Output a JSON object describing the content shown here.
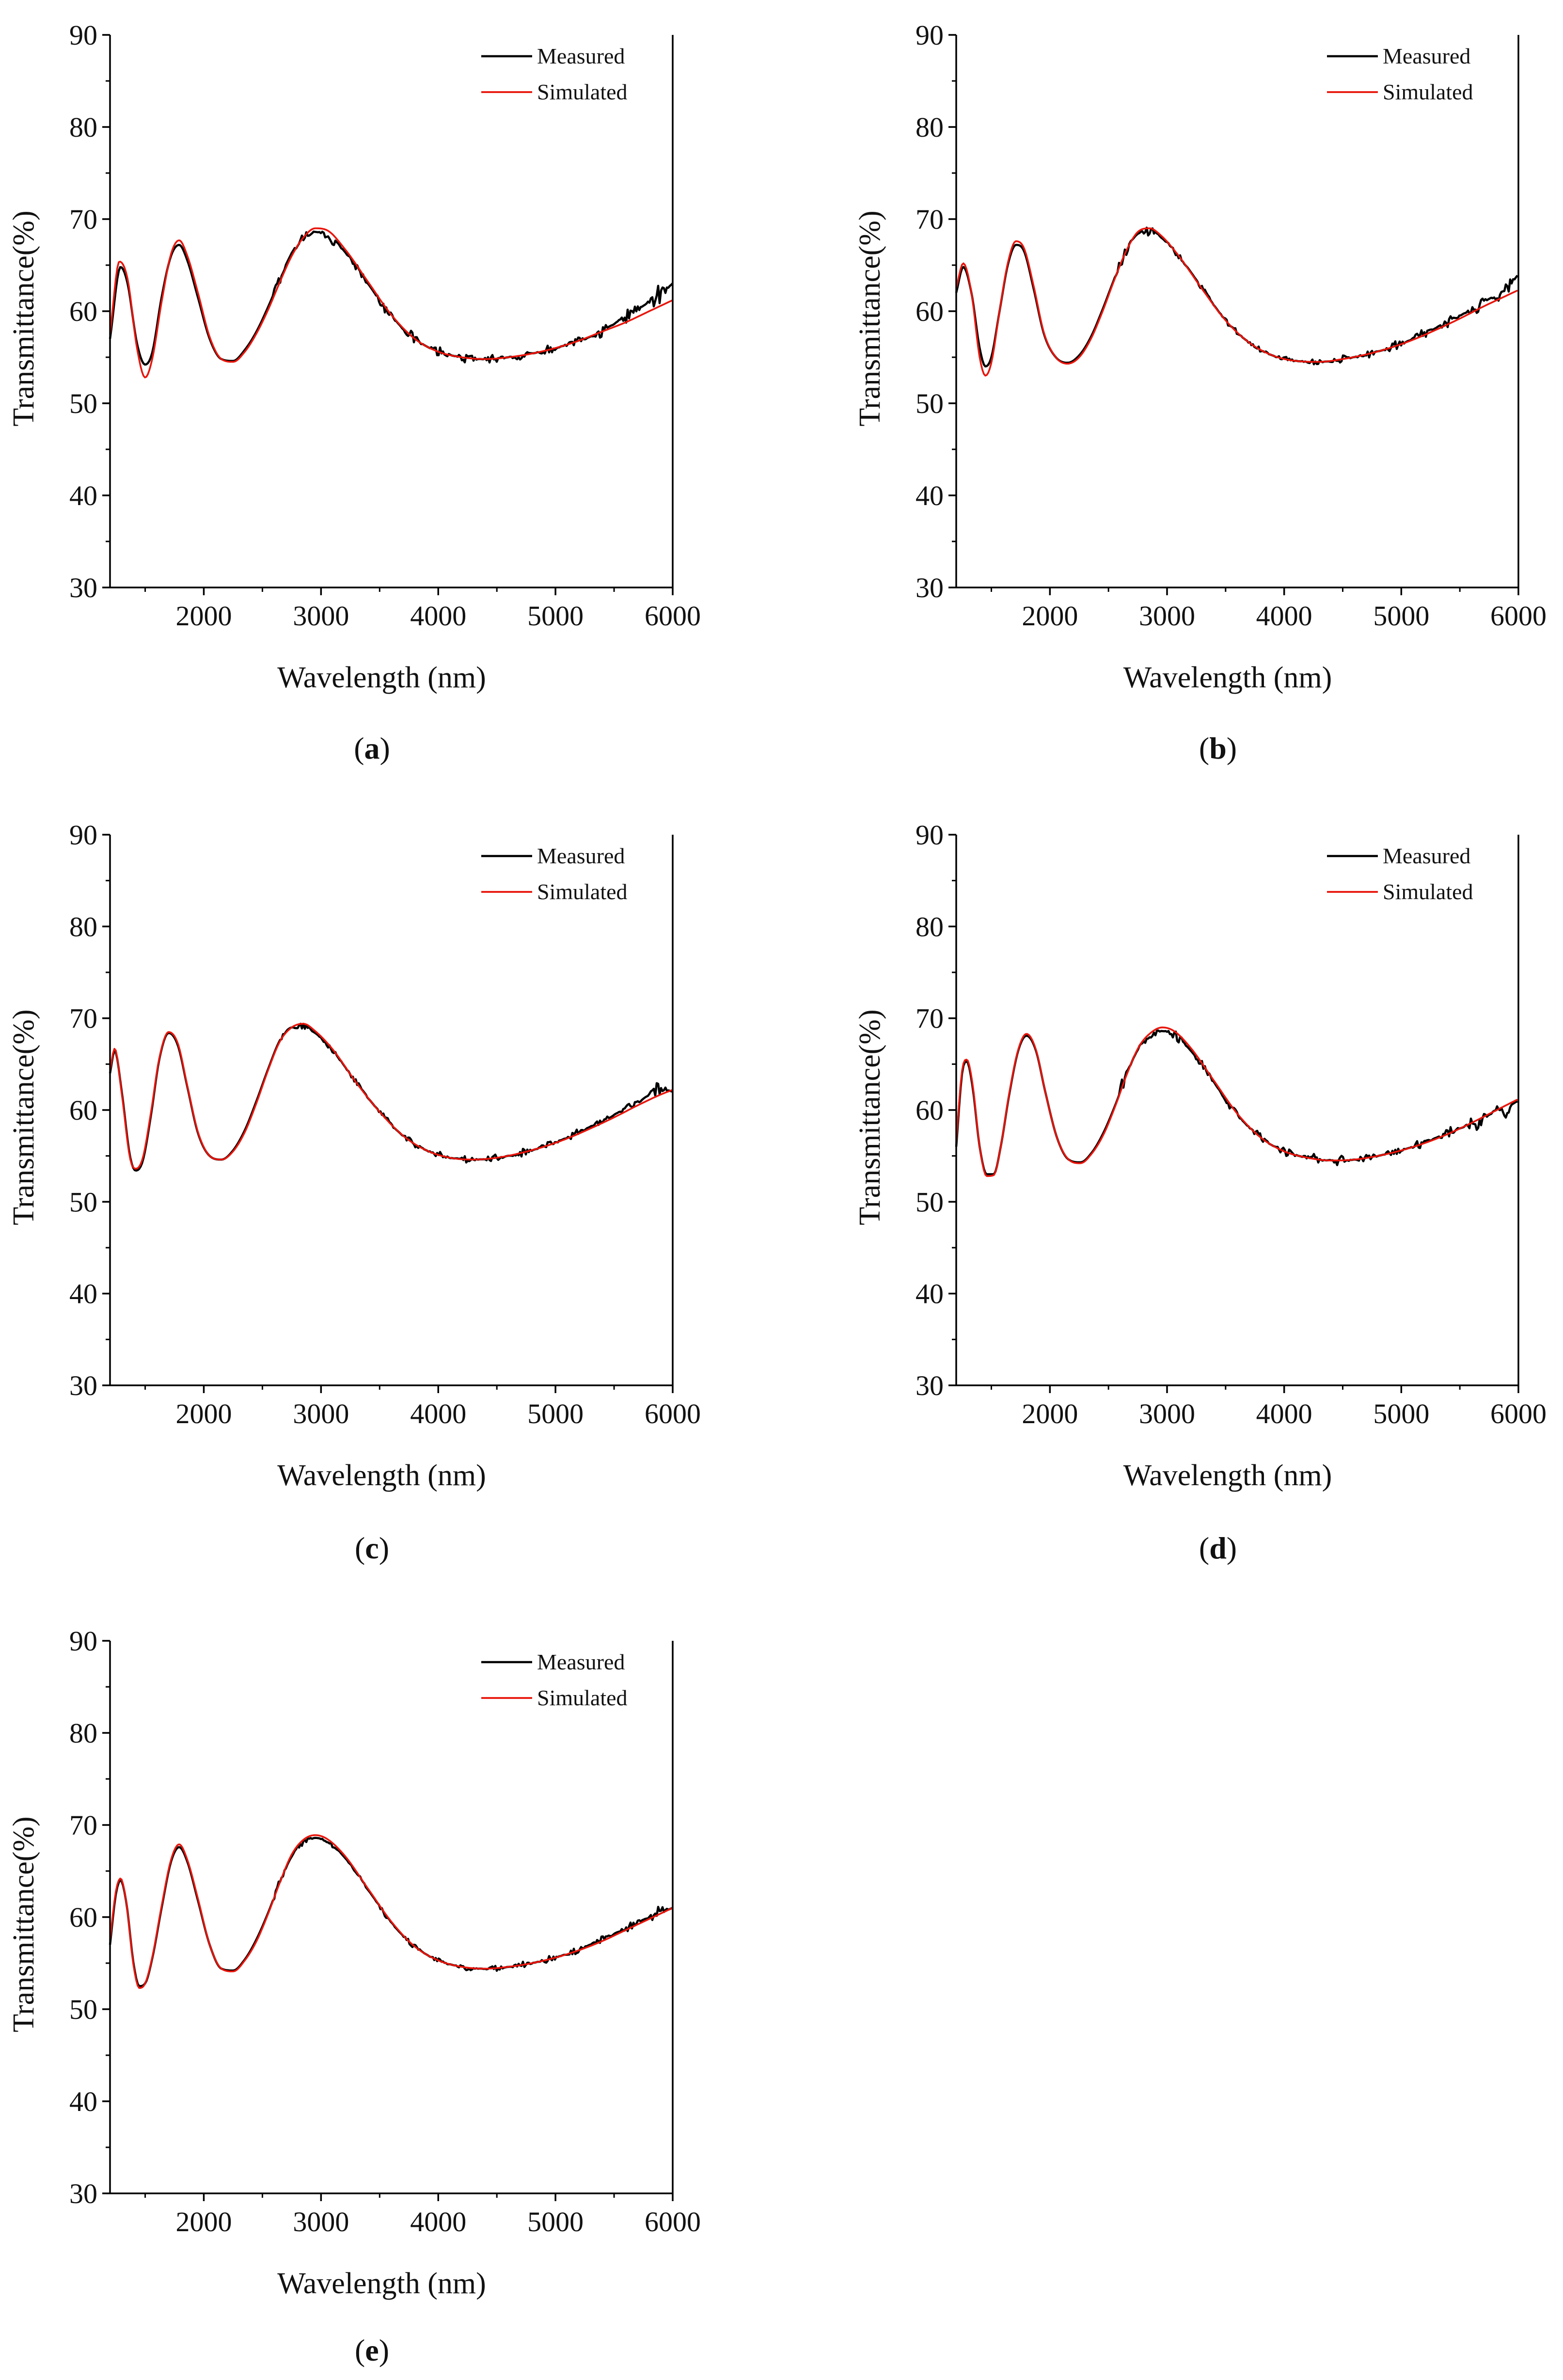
{
  "colors": {
    "measured": "#000000",
    "simulated": "#e8150b",
    "axis": "#000000"
  },
  "chart_data": [
    {
      "panel": "a",
      "type": "line",
      "caption": "(a)",
      "xlabel": "Wavelength (nm)",
      "ylabel": "Transmittance(%)",
      "xlim": [
        1200,
        6000
      ],
      "ylim": [
        30,
        90
      ],
      "xticks": [
        2000,
        3000,
        4000,
        5000,
        6000
      ],
      "yticks": [
        30,
        40,
        50,
        60,
        70,
        80,
        90
      ],
      "legend": "top-right",
      "series": [
        {
          "name": "Measured",
          "color": "#000000",
          "noise": [
            [
              2600,
              0.6
            ],
            [
              5300,
              0.5
            ],
            [
              5500,
              0.9
            ],
            [
              6000,
              1.6
            ]
          ],
          "x": [
            1200,
            1290,
            1350,
            1430,
            1500,
            1560,
            1640,
            1720,
            1790,
            1860,
            1950,
            2050,
            2150,
            2250,
            2350,
            2450,
            2550,
            2650,
            2750,
            2850,
            2950,
            3050,
            3200,
            3400,
            3600,
            3800,
            4000,
            4200,
            4400,
            4600,
            4800,
            5000,
            5200,
            5400,
            5600,
            5800,
            6000
          ],
          "y": [
            57.0,
            64.8,
            63.0,
            56.5,
            54.2,
            55.5,
            61.5,
            66.0,
            67.2,
            65.5,
            61.5,
            57.0,
            54.8,
            54.6,
            55.8,
            57.8,
            60.5,
            63.5,
            66.3,
            68.0,
            68.6,
            68.2,
            66.5,
            63.0,
            59.5,
            57.0,
            55.6,
            55.0,
            54.8,
            55.0,
            55.4,
            56.0,
            56.8,
            57.8,
            59.5,
            61.0,
            63.0
          ]
        },
        {
          "name": "Simulated",
          "color": "#e8150b",
          "noise": [],
          "x": [
            1200,
            1280,
            1350,
            1430,
            1500,
            1560,
            1640,
            1720,
            1790,
            1860,
            1950,
            2050,
            2150,
            2250,
            2350,
            2450,
            2550,
            2650,
            2750,
            2850,
            2950,
            3050,
            3200,
            3400,
            3600,
            3800,
            4000,
            4200,
            4400,
            4600,
            4800,
            5000,
            5200,
            5400,
            5600,
            5800,
            6000
          ],
          "y": [
            57.5,
            65.4,
            63.5,
            56.0,
            52.8,
            54.8,
            61.0,
            66.2,
            67.7,
            66.0,
            62.0,
            57.2,
            54.8,
            54.5,
            55.6,
            57.6,
            60.2,
            63.2,
            66.0,
            68.0,
            69.0,
            68.8,
            66.8,
            63.2,
            59.6,
            57.0,
            55.6,
            55.0,
            54.8,
            55.0,
            55.4,
            56.0,
            56.8,
            57.8,
            58.8,
            60.0,
            61.2
          ]
        }
      ]
    },
    {
      "panel": "b",
      "type": "line",
      "caption": "(b)",
      "xlabel": "Wavelength (nm)",
      "ylabel": "Transmittance(%)",
      "xlim": [
        1200,
        6000
      ],
      "ylim": [
        30,
        90
      ],
      "xticks": [
        2000,
        3000,
        4000,
        5000,
        6000
      ],
      "yticks": [
        30,
        40,
        50,
        60,
        70,
        80,
        90
      ],
      "legend": "top-right",
      "series": [
        {
          "name": "Measured",
          "color": "#000000",
          "noise": [
            [
              2550,
              0.7
            ],
            [
              3100,
              0.3
            ],
            [
              5500,
              0.6
            ],
            [
              6000,
              1.3
            ]
          ],
          "x": [
            1200,
            1260,
            1330,
            1400,
            1450,
            1500,
            1570,
            1640,
            1710,
            1780,
            1860,
            1950,
            2050,
            2150,
            2250,
            2350,
            2450,
            2550,
            2650,
            2750,
            2850,
            2950,
            3100,
            3300,
            3500,
            3700,
            3900,
            4100,
            4300,
            4500,
            4700,
            4900,
            5100,
            5300,
            5500,
            5700,
            5900,
            6000
          ],
          "y": [
            62.0,
            64.8,
            62.0,
            56.0,
            54.0,
            55.0,
            60.0,
            65.0,
            67.2,
            66.5,
            62.5,
            57.5,
            55.0,
            54.4,
            55.2,
            57.2,
            60.2,
            63.5,
            66.5,
            68.4,
            68.7,
            68.0,
            66.0,
            62.5,
            59.0,
            56.6,
            55.2,
            54.6,
            54.5,
            54.8,
            55.3,
            56.0,
            57.0,
            58.2,
            59.5,
            61.0,
            62.5,
            64.0
          ]
        },
        {
          "name": "Simulated",
          "color": "#e8150b",
          "noise": [],
          "x": [
            1200,
            1260,
            1330,
            1400,
            1450,
            1500,
            1570,
            1640,
            1710,
            1780,
            1860,
            1950,
            2050,
            2150,
            2250,
            2350,
            2450,
            2550,
            2650,
            2750,
            2850,
            2950,
            3100,
            3300,
            3500,
            3700,
            3900,
            4100,
            4300,
            4500,
            4700,
            4900,
            5100,
            5300,
            5500,
            5700,
            5900,
            6000
          ],
          "y": [
            62.5,
            65.2,
            62.0,
            55.0,
            53.0,
            54.4,
            60.0,
            65.2,
            67.6,
            66.8,
            62.8,
            57.6,
            55.0,
            54.3,
            55.0,
            57.0,
            60.0,
            63.4,
            66.5,
            68.6,
            69.0,
            68.2,
            66.0,
            62.4,
            59.0,
            56.6,
            55.2,
            54.6,
            54.5,
            54.8,
            55.3,
            56.0,
            56.9,
            58.0,
            59.2,
            60.5,
            61.7,
            62.3
          ]
        }
      ]
    },
    {
      "panel": "c",
      "type": "line",
      "caption": "(c)",
      "xlabel": "Wavelength (nm)",
      "ylabel": "Transmittance(%)",
      "xlim": [
        1200,
        6000
      ],
      "ylim": [
        30,
        90
      ],
      "xticks": [
        2000,
        3000,
        4000,
        5000,
        6000
      ],
      "yticks": [
        30,
        40,
        50,
        60,
        70,
        80,
        90
      ],
      "legend": "top-right",
      "series": [
        {
          "name": "Measured",
          "color": "#000000",
          "noise": [
            [
              2650,
              0.5
            ],
            [
              3000,
              0.3
            ],
            [
              5500,
              0.5
            ],
            [
              6000,
              1.0
            ]
          ],
          "x": [
            1200,
            1240,
            1300,
            1370,
            1420,
            1480,
            1550,
            1620,
            1700,
            1780,
            1860,
            1950,
            2050,
            2150,
            2250,
            2350,
            2450,
            2550,
            2650,
            2750,
            2850,
            2950,
            3100,
            3300,
            3500,
            3700,
            3900,
            4100,
            4300,
            4500,
            4700,
            4900,
            5100,
            5300,
            5500,
            5700,
            5900,
            6000
          ],
          "y": [
            64.0,
            66.5,
            62.0,
            55.0,
            53.4,
            54.5,
            59.5,
            65.5,
            68.4,
            67.0,
            62.5,
            57.5,
            55.0,
            54.6,
            55.6,
            57.8,
            61.0,
            64.5,
            67.6,
            69.0,
            69.1,
            68.4,
            66.5,
            63.0,
            59.8,
            57.2,
            55.6,
            54.8,
            54.6,
            54.8,
            55.3,
            56.0,
            57.0,
            58.2,
            59.5,
            60.8,
            62.3,
            62.0
          ]
        },
        {
          "name": "Simulated",
          "color": "#e8150b",
          "noise": [],
          "x": [
            1200,
            1240,
            1300,
            1370,
            1420,
            1480,
            1550,
            1620,
            1700,
            1780,
            1860,
            1950,
            2050,
            2150,
            2250,
            2350,
            2450,
            2550,
            2650,
            2750,
            2850,
            2950,
            3100,
            3300,
            3500,
            3700,
            3900,
            4100,
            4300,
            4500,
            4700,
            4900,
            5100,
            5300,
            5500,
            5700,
            5900,
            6000
          ],
          "y": [
            64.3,
            66.7,
            61.8,
            54.8,
            53.6,
            54.8,
            59.8,
            65.6,
            68.5,
            67.2,
            62.6,
            57.6,
            55.0,
            54.6,
            55.5,
            57.6,
            60.8,
            64.4,
            67.5,
            69.0,
            69.4,
            68.6,
            66.6,
            63.0,
            59.8,
            57.2,
            55.6,
            54.8,
            54.6,
            54.8,
            55.3,
            56.0,
            56.9,
            58.0,
            59.2,
            60.5,
            61.7,
            62.2
          ]
        }
      ]
    },
    {
      "panel": "d",
      "type": "line",
      "caption": "(d)",
      "xlabel": "Wavelength (nm)",
      "ylabel": "Transmittance(%)",
      "xlim": [
        1200,
        6000
      ],
      "ylim": [
        30,
        90
      ],
      "xticks": [
        2000,
        3000,
        4000,
        5000,
        6000
      ],
      "yticks": [
        30,
        40,
        50,
        60,
        70,
        80,
        90
      ],
      "legend": "top-right",
      "series": [
        {
          "name": "Measured",
          "color": "#000000",
          "noise": [
            [
              2600,
              1.0
            ],
            [
              2800,
              0.5
            ],
            [
              5400,
              0.6
            ],
            [
              5700,
              1.2
            ],
            [
              6000,
              1.4
            ]
          ],
          "x": [
            1200,
            1250,
            1290,
            1340,
            1400,
            1460,
            1520,
            1580,
            1650,
            1730,
            1800,
            1880,
            1960,
            2060,
            2160,
            2260,
            2360,
            2460,
            2560,
            2660,
            2760,
            2860,
            2960,
            3060,
            3200,
            3400,
            3600,
            3800,
            4000,
            4200,
            4400,
            4600,
            4800,
            5000,
            5200,
            5400,
            5600,
            5800,
            6000
          ],
          "y": [
            56.0,
            64.0,
            65.3,
            62.5,
            56.0,
            53.0,
            53.0,
            56.0,
            61.5,
            66.5,
            68.1,
            66.5,
            62.0,
            57.0,
            54.6,
            54.3,
            55.4,
            57.6,
            60.6,
            64.0,
            66.8,
            68.1,
            68.6,
            68.2,
            66.5,
            63.0,
            59.5,
            57.0,
            55.5,
            54.8,
            54.5,
            54.6,
            55.0,
            55.6,
            56.5,
            57.5,
            58.5,
            59.8,
            61.0
          ]
        },
        {
          "name": "Simulated",
          "color": "#e8150b",
          "noise": [],
          "x": [
            1200,
            1250,
            1290,
            1340,
            1400,
            1460,
            1520,
            1580,
            1650,
            1730,
            1800,
            1880,
            1960,
            2060,
            2160,
            2260,
            2360,
            2460,
            2560,
            2660,
            2760,
            2860,
            2960,
            3060,
            3200,
            3400,
            3600,
            3800,
            4000,
            4200,
            4400,
            4600,
            4800,
            5000,
            5200,
            5400,
            5600,
            5800,
            6000
          ],
          "y": [
            56.5,
            64.3,
            65.5,
            62.8,
            56.0,
            52.8,
            52.9,
            56.0,
            61.6,
            66.6,
            68.3,
            66.6,
            62.0,
            57.0,
            54.6,
            54.2,
            55.3,
            57.4,
            60.5,
            64.0,
            66.9,
            68.4,
            69.0,
            68.6,
            66.8,
            63.2,
            59.6,
            57.0,
            55.5,
            54.8,
            54.5,
            54.6,
            55.0,
            55.6,
            56.4,
            57.4,
            58.6,
            59.9,
            61.2
          ]
        }
      ]
    },
    {
      "panel": "e",
      "type": "line",
      "caption": "(e)",
      "xlabel": "Wavelength (nm)",
      "ylabel": "Transmittance(%)",
      "xlim": [
        1200,
        6000
      ],
      "ylim": [
        30,
        90
      ],
      "xticks": [
        2000,
        3000,
        4000,
        5000,
        6000
      ],
      "yticks": [
        30,
        40,
        50,
        60,
        70,
        80,
        90
      ],
      "legend": "top-right",
      "series": [
        {
          "name": "Measured",
          "color": "#000000",
          "noise": [
            [
              2600,
              0.5
            ],
            [
              3000,
              0.2
            ],
            [
              5300,
              0.4
            ],
            [
              5700,
              0.6
            ],
            [
              6000,
              0.8
            ]
          ],
          "x": [
            1200,
            1250,
            1290,
            1340,
            1400,
            1450,
            1500,
            1560,
            1640,
            1720,
            1790,
            1860,
            1950,
            2050,
            2150,
            2250,
            2350,
            2450,
            2550,
            2650,
            2750,
            2850,
            2950,
            3050,
            3200,
            3400,
            3600,
            3800,
            4000,
            4200,
            4400,
            4600,
            4800,
            5000,
            5200,
            5400,
            5600,
            5800,
            6000
          ],
          "y": [
            57.0,
            62.5,
            64.0,
            61.5,
            55.0,
            52.5,
            52.8,
            55.5,
            61.0,
            66.0,
            67.6,
            66.0,
            61.8,
            57.0,
            54.4,
            54.2,
            55.4,
            57.6,
            60.5,
            63.8,
            66.6,
            68.1,
            68.6,
            68.2,
            66.5,
            63.0,
            59.4,
            56.8,
            55.3,
            54.6,
            54.4,
            54.6,
            55.0,
            55.6,
            56.5,
            57.6,
            58.8,
            60.0,
            61.0
          ]
        },
        {
          "name": "Simulated",
          "color": "#e8150b",
          "noise": [],
          "x": [
            1200,
            1250,
            1290,
            1340,
            1400,
            1450,
            1500,
            1560,
            1640,
            1720,
            1790,
            1860,
            1950,
            2050,
            2150,
            2250,
            2350,
            2450,
            2550,
            2650,
            2750,
            2850,
            2950,
            3050,
            3200,
            3400,
            3600,
            3800,
            4000,
            4200,
            4400,
            4600,
            4800,
            5000,
            5200,
            5400,
            5600,
            5800,
            6000
          ],
          "y": [
            57.5,
            62.8,
            64.2,
            61.5,
            54.8,
            52.3,
            52.8,
            55.6,
            61.2,
            66.2,
            67.9,
            66.2,
            62.0,
            57.0,
            54.4,
            54.1,
            55.3,
            57.4,
            60.4,
            63.8,
            66.8,
            68.4,
            68.9,
            68.5,
            66.7,
            63.1,
            59.5,
            56.8,
            55.3,
            54.6,
            54.4,
            54.6,
            55.0,
            55.6,
            56.4,
            57.4,
            58.6,
            59.8,
            61.0
          ]
        }
      ]
    }
  ]
}
